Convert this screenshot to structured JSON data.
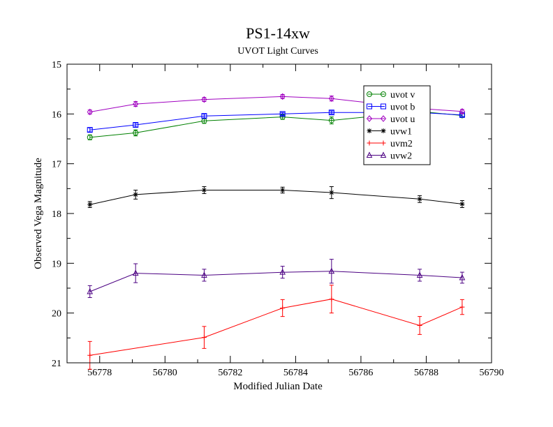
{
  "chart_data": {
    "type": "line",
    "title": "PS1-14xw",
    "subtitle": "UVOT Light Curves",
    "xlabel": "Modified Julian Date",
    "ylabel": "Observed Vega Magnitude",
    "xlim": [
      56777,
      56790
    ],
    "ylim": [
      15,
      21
    ],
    "y_inverted": true,
    "x_ticks": [
      "56778",
      "56780",
      "56782",
      "56784",
      "56786",
      "56788",
      "56790"
    ],
    "y_ticks": [
      "15",
      "16",
      "17",
      "18",
      "19",
      "20",
      "21"
    ],
    "legend_position": "top-right",
    "series": [
      {
        "name": "uvot v",
        "color": "#008000",
        "marker": "circle",
        "x": [
          56777.7,
          56779.1,
          56781.2,
          56783.6,
          56785.1,
          56787.8,
          56789.1
        ],
        "y": [
          16.47,
          16.38,
          16.14,
          16.06,
          16.13,
          15.95,
          16.03
        ],
        "err": [
          0.05,
          0.06,
          0.05,
          0.05,
          0.07,
          0.05,
          0.04
        ]
      },
      {
        "name": "uvot b",
        "color": "#0000ff",
        "marker": "square",
        "x": [
          56777.7,
          56779.1,
          56781.2,
          56783.6,
          56785.1,
          56787.8,
          56789.1
        ],
        "y": [
          16.32,
          16.22,
          16.04,
          16.0,
          15.97,
          15.97,
          16.02
        ],
        "err": [
          0.04,
          0.04,
          0.04,
          0.03,
          0.03,
          0.03,
          0.03
        ]
      },
      {
        "name": "uvot u",
        "color": "#a000c0",
        "marker": "diamond",
        "x": [
          56777.7,
          56779.1,
          56781.2,
          56783.6,
          56785.1,
          56787.8,
          56789.1
        ],
        "y": [
          15.96,
          15.8,
          15.71,
          15.65,
          15.69,
          15.89,
          15.95
        ],
        "err": [
          0.04,
          0.05,
          0.04,
          0.04,
          0.05,
          0.04,
          0.04
        ]
      },
      {
        "name": "uvw1",
        "color": "#000000",
        "marker": "star",
        "x": [
          56777.7,
          56779.1,
          56781.2,
          56783.6,
          56785.1,
          56787.8,
          56789.1
        ],
        "y": [
          17.82,
          17.62,
          17.53,
          17.53,
          17.58,
          17.71,
          17.81
        ],
        "err": [
          0.06,
          0.09,
          0.07,
          0.06,
          0.12,
          0.07,
          0.07
        ]
      },
      {
        "name": "uvm2",
        "color": "#ff0000",
        "marker": "plus",
        "x": [
          56777.7,
          56779.1,
          56781.2,
          56783.6,
          56785.1,
          56787.8,
          56789.1
        ],
        "y": [
          20.85,
          null,
          20.49,
          19.9,
          19.72,
          20.25,
          19.88
        ],
        "err": [
          0.28,
          null,
          0.22,
          0.17,
          0.28,
          0.18,
          0.15
        ]
      },
      {
        "name": "uvw2",
        "color": "#4b0082",
        "marker": "triangle",
        "x": [
          56777.7,
          56779.1,
          56781.2,
          56783.6,
          56785.1,
          56787.8,
          56789.1
        ],
        "y": [
          19.57,
          19.2,
          19.24,
          19.18,
          19.16,
          19.24,
          19.29
        ],
        "err": [
          0.12,
          0.19,
          0.12,
          0.12,
          0.24,
          0.12,
          0.11
        ]
      }
    ]
  }
}
